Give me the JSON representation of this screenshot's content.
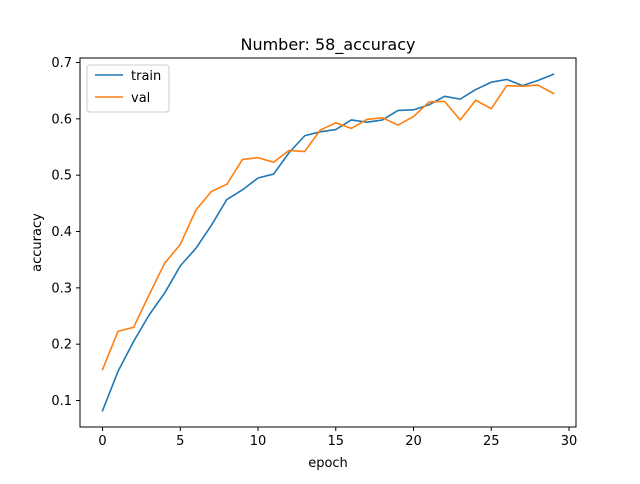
{
  "chart_data": {
    "type": "line",
    "title": "Number: 58_accuracy",
    "xlabel": "epoch",
    "ylabel": "accuracy",
    "xlim": [
      -1.45,
      30.45
    ],
    "ylim": [
      0.053,
      0.708
    ],
    "xticks": [
      0,
      5,
      10,
      15,
      20,
      25,
      30
    ],
    "xtick_labels": [
      "0",
      "5",
      "10",
      "15",
      "20",
      "25",
      "30"
    ],
    "yticks": [
      0.1,
      0.2,
      0.3,
      0.4,
      0.5,
      0.6,
      0.7
    ],
    "ytick_labels": [
      "0.1",
      "0.2",
      "0.3",
      "0.4",
      "0.5",
      "0.6",
      "0.7"
    ],
    "grid": false,
    "legend": "top-left",
    "x": [
      0,
      1,
      2,
      3,
      4,
      5,
      6,
      7,
      8,
      9,
      10,
      11,
      12,
      13,
      14,
      15,
      16,
      17,
      18,
      19,
      20,
      21,
      22,
      23,
      24,
      25,
      26,
      27,
      28,
      29
    ],
    "series": [
      {
        "name": "train",
        "color": "#1f77b4",
        "values": [
          0.082,
          0.152,
          0.205,
          0.252,
          0.291,
          0.339,
          0.37,
          0.411,
          0.457,
          0.474,
          0.495,
          0.502,
          0.54,
          0.57,
          0.577,
          0.581,
          0.598,
          0.594,
          0.598,
          0.615,
          0.616,
          0.625,
          0.64,
          0.635,
          0.652,
          0.665,
          0.67,
          0.659,
          0.668,
          0.679
        ]
      },
      {
        "name": "val",
        "color": "#ff7f0e",
        "values": [
          0.155,
          0.223,
          0.23,
          0.288,
          0.344,
          0.377,
          0.438,
          0.471,
          0.484,
          0.528,
          0.531,
          0.523,
          0.544,
          0.542,
          0.58,
          0.593,
          0.583,
          0.599,
          0.602,
          0.589,
          0.604,
          0.63,
          0.631,
          0.598,
          0.633,
          0.618,
          0.659,
          0.658,
          0.66,
          0.645
        ]
      }
    ]
  }
}
